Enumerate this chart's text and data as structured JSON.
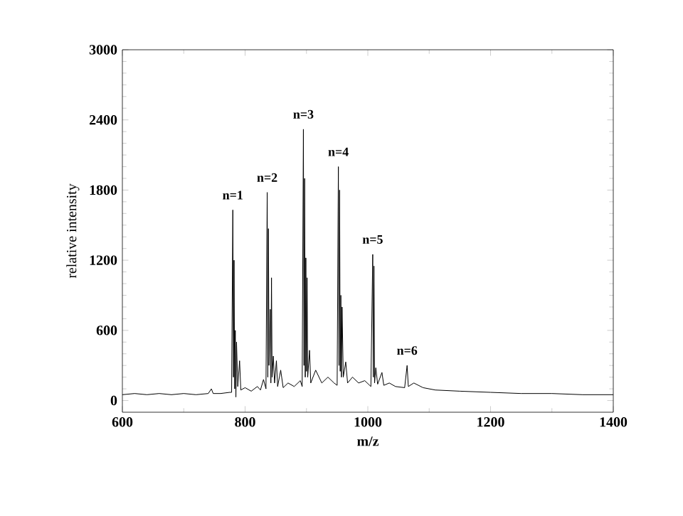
{
  "chart_data": {
    "type": "line",
    "xlabel": "m/z",
    "ylabel": "relative intensity",
    "xlim": [
      600,
      1400
    ],
    "ylim": [
      -100,
      3000
    ],
    "xticks": [
      600,
      800,
      1000,
      1200,
      1400
    ],
    "yticks": [
      0,
      600,
      1200,
      1800,
      2400,
      3000
    ],
    "marker": "none",
    "line_style": "solid",
    "series": [
      {
        "color": "#000000",
        "x": [
          600,
          620,
          640,
          660,
          680,
          700,
          720,
          740,
          745,
          748,
          760,
          775,
          778,
          780,
          781,
          782,
          783,
          784,
          785,
          786,
          788,
          791,
          793,
          800,
          810,
          820,
          825,
          830,
          834,
          836,
          837,
          838,
          839,
          841,
          842,
          843,
          844,
          846,
          848,
          851,
          853,
          858,
          862,
          870,
          880,
          890,
          893,
          895,
          896,
          897,
          898,
          899,
          900,
          901,
          902,
          905,
          907,
          915,
          925,
          935,
          945,
          950,
          952,
          953,
          954,
          955,
          956,
          957,
          958,
          960,
          964,
          967,
          975,
          985,
          995,
          1005,
          1008,
          1009,
          1010,
          1011,
          1013,
          1016,
          1023,
          1026,
          1035,
          1045,
          1060,
          1064,
          1066,
          1075,
          1090,
          1110,
          1150,
          1200,
          1250,
          1300,
          1350,
          1400
        ],
        "values": [
          50,
          60,
          50,
          60,
          50,
          60,
          50,
          60,
          100,
          60,
          60,
          70,
          70,
          1630,
          200,
          1200,
          100,
          600,
          30,
          500,
          120,
          340,
          90,
          110,
          80,
          120,
          90,
          180,
          100,
          1780,
          200,
          1470,
          300,
          780,
          150,
          1050,
          200,
          380,
          150,
          340,
          120,
          260,
          110,
          150,
          120,
          170,
          120,
          2320,
          300,
          1900,
          200,
          1220,
          250,
          1050,
          200,
          430,
          150,
          260,
          150,
          200,
          150,
          130,
          2000,
          300,
          1800,
          250,
          900,
          200,
          800,
          200,
          330,
          150,
          200,
          150,
          170,
          120,
          1250,
          200,
          1150,
          150,
          280,
          140,
          240,
          130,
          150,
          120,
          110,
          300,
          120,
          150,
          110,
          90,
          80,
          70,
          60,
          60,
          50,
          50
        ]
      }
    ],
    "annotations": [
      {
        "text": "n=1",
        "x": 780,
        "y": 1630
      },
      {
        "text": "n=2",
        "x": 836,
        "y": 1780
      },
      {
        "text": "n=3",
        "x": 895,
        "y": 2320
      },
      {
        "text": "n=4",
        "x": 952,
        "y": 2000
      },
      {
        "text": "n=5",
        "x": 1008,
        "y": 1250
      },
      {
        "text": "n=6",
        "x": 1064,
        "y": 300
      }
    ]
  }
}
